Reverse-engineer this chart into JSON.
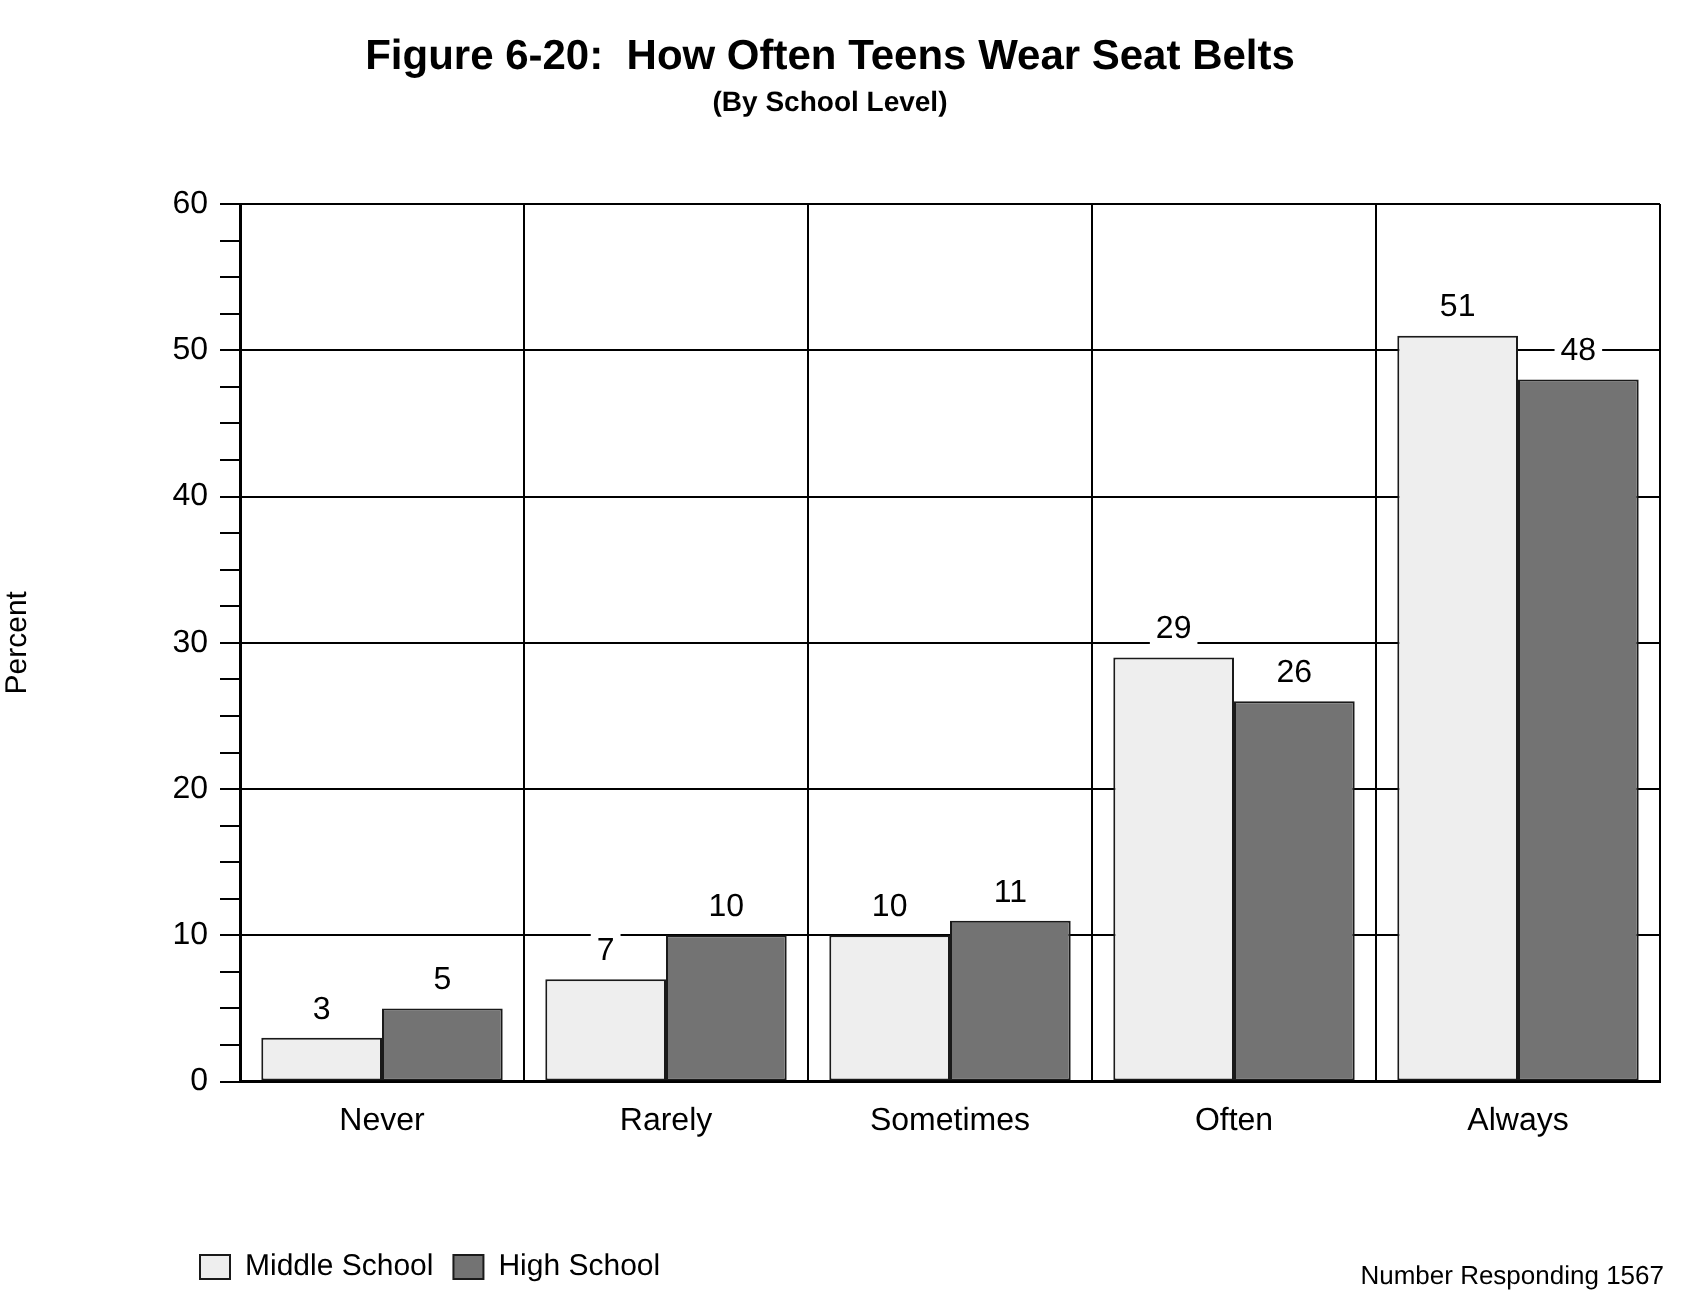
{
  "chart_data": {
    "type": "bar",
    "title": "Figure 6-20:  How Often Teens Wear Seat Belts",
    "subtitle": "(By School Level)",
    "ylabel": "Percent",
    "categories": [
      "Never",
      "Rarely",
      "Sometimes",
      "Often",
      "Always"
    ],
    "series": [
      {
        "name": "Middle School",
        "color": "#eeeeee",
        "values": [
          3,
          7,
          10,
          29,
          51
        ]
      },
      {
        "name": "High School",
        "color": "#737373",
        "values": [
          5,
          10,
          11,
          26,
          48
        ]
      }
    ],
    "ylim": [
      0,
      60
    ],
    "yticks": [
      0,
      {
        "value": 2.5,
        "label": null
      },
      {
        "value": 5,
        "label": null
      },
      {
        "value": 7.5,
        "label": null
      },
      10,
      {
        "value": 12.5,
        "label": null
      },
      {
        "value": 15,
        "label": null
      },
      {
        "value": 17.5,
        "label": null
      },
      20,
      {
        "value": 22.5,
        "label": null
      },
      {
        "value": 25,
        "label": null
      },
      {
        "value": 27.5,
        "label": null
      },
      30,
      {
        "value": 32.5,
        "label": null
      },
      {
        "value": 35,
        "label": null
      },
      {
        "value": 37.5,
        "label": null
      },
      40,
      {
        "value": 42.5,
        "label": null
      },
      {
        "value": 45,
        "label": null
      },
      {
        "value": 47.5,
        "label": null
      },
      50,
      {
        "value": 52.5,
        "label": null
      },
      {
        "value": 55,
        "label": null
      },
      {
        "value": 57.5,
        "label": null
      },
      60
    ],
    "data_labels": true,
    "grid": true,
    "legend": "bottom left",
    "annotations": [
      "Number Responding 1567"
    ]
  }
}
